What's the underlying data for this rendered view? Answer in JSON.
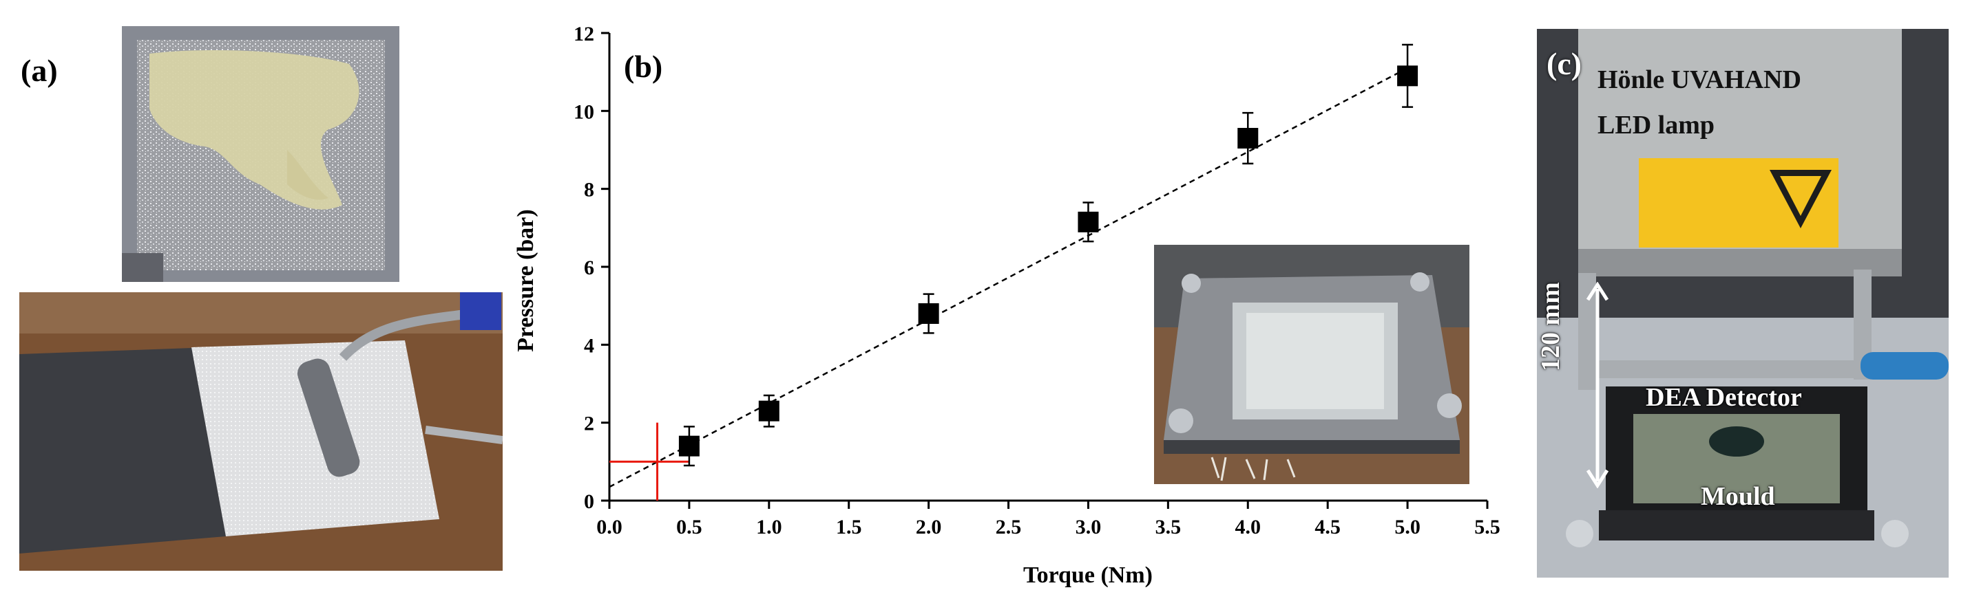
{
  "panels": {
    "a": {
      "label": "(a)"
    },
    "b": {
      "label": "(b)"
    },
    "c": {
      "label": "(c)",
      "lamp_label_line1": "Hönle UVAHAND",
      "lamp_label_line2": "LED lamp",
      "distance_label": "120 mm",
      "detector_label": "DEA Detector",
      "mould_label": "Mould"
    }
  },
  "icons": {
    "lamp_warning_icon": "uv-radiation-warning-sign",
    "photo_a_top": "resin-impregnated-fabric-photo",
    "photo_a_bottom": "laminating-roller-on-fabric-photo",
    "photo_b_inset": "clamped-mould-frame-photo",
    "photo_c": "uv-lamp-over-mould-setup-photo"
  },
  "chart_data": {
    "type": "scatter",
    "xlabel": "Torque (Nm)",
    "ylabel": "Pressure (bar)",
    "xlim": [
      0.0,
      5.5
    ],
    "ylim": [
      0,
      12
    ],
    "x_ticks": [
      "0.0",
      "0.5",
      "1.0",
      "1.5",
      "2.0",
      "2.5",
      "3.0",
      "3.5",
      "4.0",
      "4.5",
      "5.0",
      "5.5"
    ],
    "y_ticks": [
      "0",
      "2",
      "4",
      "6",
      "8",
      "10",
      "12"
    ],
    "grid": false,
    "legend": "none",
    "series": [
      {
        "marker": "square",
        "color": "#000000",
        "points": [
          {
            "x": 0.5,
            "y": 1.4,
            "err": 0.5
          },
          {
            "x": 1.0,
            "y": 2.3,
            "err": 0.4
          },
          {
            "x": 2.0,
            "y": 4.8,
            "err": 0.5
          },
          {
            "x": 3.0,
            "y": 7.15,
            "err": 0.5
          },
          {
            "x": 4.0,
            "y": 9.3,
            "err": 0.65
          },
          {
            "x": 5.0,
            "y": 10.9,
            "err": 0.8
          }
        ]
      }
    ],
    "trendline": {
      "style": "dashed",
      "color": "#000000",
      "x": [
        0.0,
        5.0
      ],
      "y": [
        0.35,
        11.1
      ]
    },
    "annotation": {
      "type": "crosshair",
      "color": "#e8190e",
      "x": 0.3,
      "y": 1.0,
      "x_span": [
        0.0,
        0.5
      ],
      "y_span": [
        0.0,
        2.0
      ]
    }
  },
  "colors": {
    "chart_ink": "#000000",
    "annotation_red": "#e8190e",
    "lamp_grey": "#b9bcbd",
    "warning_label": "#f4c21f"
  }
}
